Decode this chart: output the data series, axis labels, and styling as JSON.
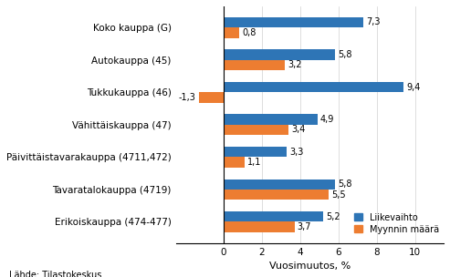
{
  "categories": [
    "Erikoiskauppa (474-477)",
    "Tavaratalokauppa (4719)",
    "Päivittäistavarakauppa (4711,472)",
    "Vähittäiskauppa (47)",
    "Tukkukauppa (46)",
    "Autokauppa (45)",
    "Koko kauppa (G)"
  ],
  "liikevaihto": [
    5.2,
    5.8,
    3.3,
    4.9,
    9.4,
    5.8,
    7.3
  ],
  "myynnin_maara": [
    3.7,
    5.5,
    1.1,
    3.4,
    -1.3,
    3.2,
    0.8
  ],
  "color_liikevaihto": "#2E75B6",
  "color_myynnin_maara": "#ED7D31",
  "xlabel": "Vuosimuutos, %",
  "legend_liikevaihto": "Liikevaihto",
  "legend_myynnin_maara": "Myynnin määrä",
  "footnote": "Lähde: Tilastokeskus",
  "xlim": [
    -2.5,
    11.5
  ],
  "xticks": [
    0,
    2,
    4,
    6,
    8,
    10
  ],
  "bar_height": 0.32,
  "background_color": "#ffffff",
  "label_fontsize": 7.0,
  "ytick_fontsize": 7.5,
  "xtick_fontsize": 7.5,
  "xlabel_fontsize": 8.0,
  "footnote_fontsize": 7.0
}
